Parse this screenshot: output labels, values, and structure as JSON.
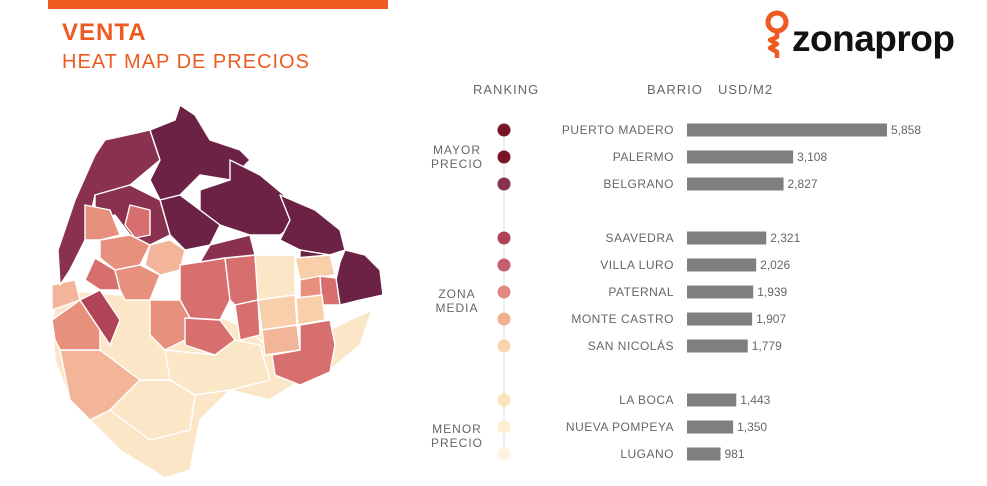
{
  "header": {
    "title": "VENTA",
    "subtitle": "HEAT MAP DE PRECIOS",
    "brand": "zonaprop",
    "accent": "#ee5a1f"
  },
  "columns": {
    "ranking": "RANKING",
    "barrio": "BARRIO",
    "unit": "USD/M2"
  },
  "groups": {
    "high": [
      "MAYOR",
      "PRECIO"
    ],
    "mid": [
      "ZONA",
      "MEDIA"
    ],
    "low": [
      "MENOR",
      "PRECIO"
    ]
  },
  "chart_data": {
    "type": "bar",
    "orientation": "horizontal",
    "categories": [
      "PUERTO MADERO",
      "PALERMO",
      "BELGRANO",
      "SAAVEDRA",
      "VILLA LURO",
      "PATERNAL",
      "MONTE CASTRO",
      "SAN NICOLÁS",
      "LA BOCA",
      "NUEVA POMPEYA",
      "LUGANO"
    ],
    "values": [
      5858,
      3108,
      2827,
      2321,
      2026,
      1939,
      1907,
      1779,
      1443,
      1350,
      981
    ],
    "value_labels": [
      "5,858",
      "3,108",
      "2,827",
      "2,321",
      "2,026",
      "1,939",
      "1,907",
      "1,779",
      "1,443",
      "1,350",
      "981"
    ],
    "bar_color": "#7f7f7f"
  },
  "ranking_colors": [
    "#7a1428",
    "#7a1428",
    "#8a3050",
    "#b04456",
    "#c45f72",
    "#e08a82",
    "#f3b08e",
    "#f9d3a9",
    "#fbe3bb",
    "#fdeed2",
    "#fdf3de"
  ],
  "map_palette": {
    "darkest": "#6b2244",
    "dark": "#8a3050",
    "mid_dark": "#b04456",
    "mid": "#d86f6f",
    "mid_light": "#e8907e",
    "light": "#f3b59a",
    "lighter": "#f9cfa9",
    "lightest": "#fbe6c8",
    "stroke": "#ffffff"
  }
}
